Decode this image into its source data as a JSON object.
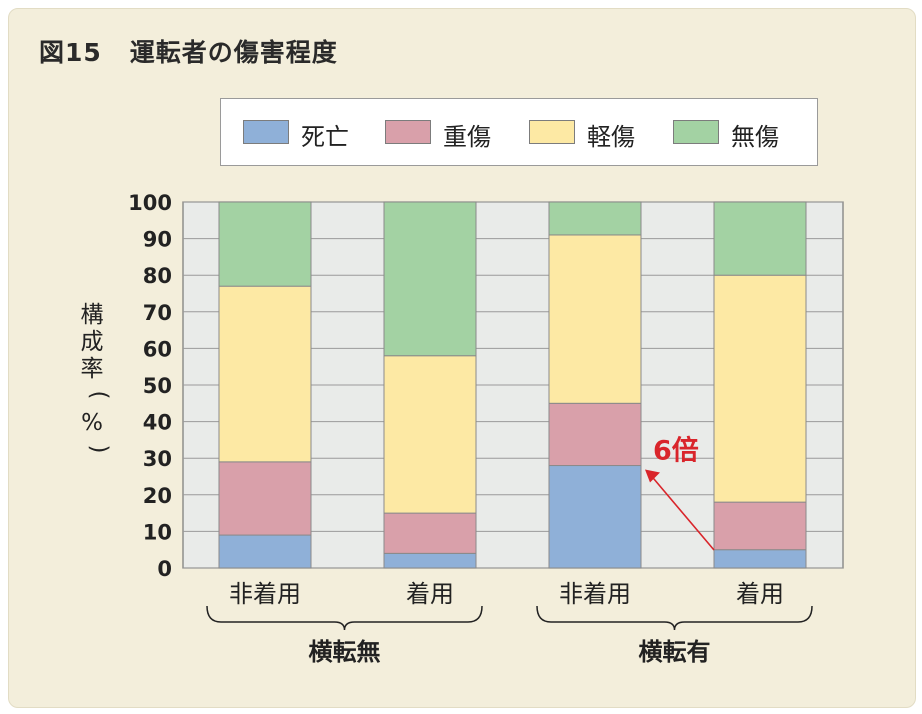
{
  "title": {
    "number": "図15",
    "text": "運転者の傷害程度"
  },
  "legend": [
    {
      "label": "死亡",
      "color": "#8fb0d8"
    },
    {
      "label": "重傷",
      "color": "#d9a0aa"
    },
    {
      "label": "軽傷",
      "color": "#fde9a4"
    },
    {
      "label": "無傷",
      "color": "#a3d2a3"
    }
  ],
  "chart_data": {
    "type": "bar",
    "stacked": true,
    "ylabel": "構成率(%)",
    "ylim": [
      0,
      100
    ],
    "yticks": [
      0,
      10,
      20,
      30,
      40,
      50,
      60,
      70,
      80,
      90,
      100
    ],
    "categories": [
      "非着用",
      "着用",
      "非着用",
      "着用"
    ],
    "groups": [
      {
        "label": "横転無",
        "categories": [
          0,
          1
        ]
      },
      {
        "label": "横転有",
        "categories": [
          2,
          3
        ]
      }
    ],
    "series": [
      {
        "name": "死亡",
        "color": "#8fb0d8",
        "values": [
          9,
          4,
          28,
          5
        ]
      },
      {
        "name": "重傷",
        "color": "#d9a0aa",
        "values": [
          20,
          11,
          17,
          13
        ]
      },
      {
        "name": "軽傷",
        "color": "#fde9a4",
        "values": [
          48,
          43,
          46,
          62
        ]
      },
      {
        "name": "無傷",
        "color": "#a3d2a3",
        "values": [
          23,
          42,
          9,
          20
        ]
      }
    ],
    "grid": true,
    "legend_position": "top",
    "annotation": {
      "text": "6倍",
      "color": "#d9252b",
      "from": {
        "category": 3,
        "y": 0
      },
      "to": {
        "category": 2,
        "y": 28
      }
    }
  }
}
